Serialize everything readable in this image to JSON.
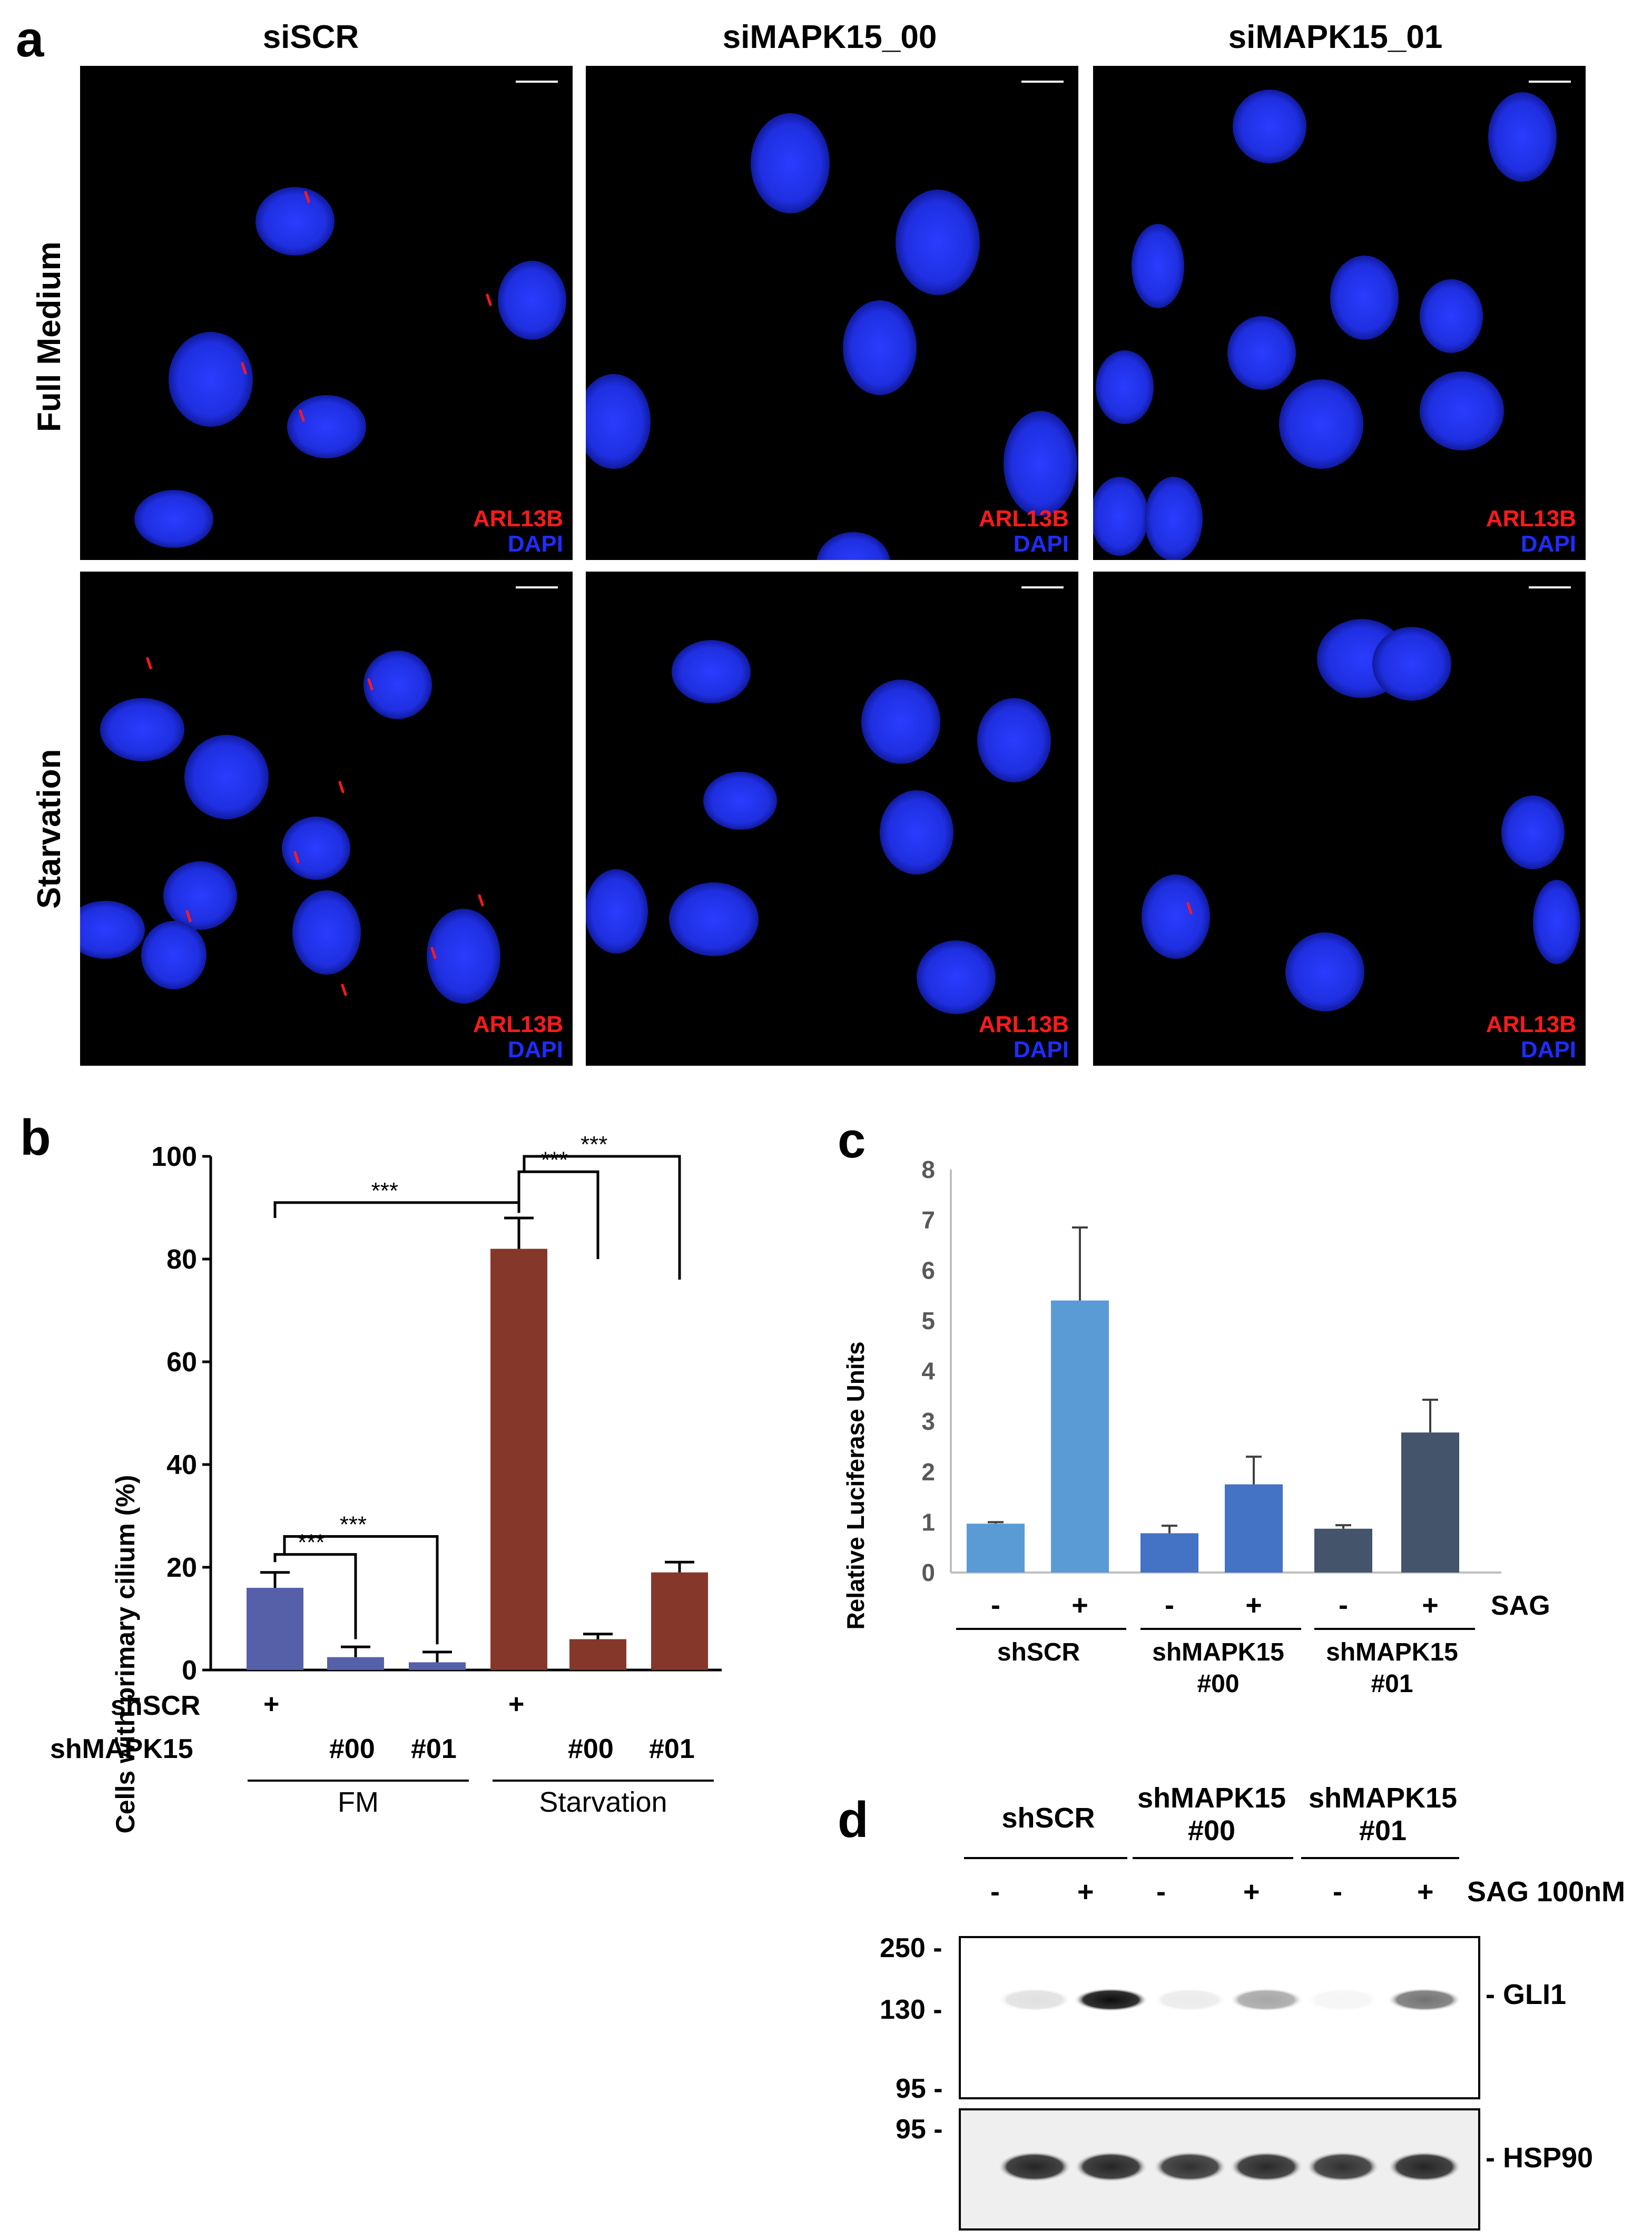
{
  "panel_a": {
    "label": "a",
    "columns": [
      "siSCR",
      "siMAPK15_00",
      "siMAPK15_01"
    ],
    "rows": [
      "Full Medium",
      "Starvation"
    ],
    "legend": {
      "marker": "ARL13B",
      "stain": "DAPI"
    },
    "colors": {
      "arl13b": "#ff1a1a",
      "dapi": "#1e2dff",
      "background": "#000000"
    }
  },
  "panel_b": {
    "label": "b",
    "row_shscr_label": "shSCR",
    "row_shmapk15_label": "shMAPK15",
    "plus": "+",
    "group_labels": [
      "FM",
      "Starvation"
    ],
    "lane_labels": [
      "#00",
      "#01"
    ],
    "significance": "***"
  },
  "panel_c": {
    "label": "c",
    "sag_label": "SAG",
    "signs": [
      "-",
      "+",
      "-",
      "+",
      "-",
      "+"
    ],
    "groups": [
      "shSCR",
      "shMAPK15\n#00",
      "shMAPK15\n#01"
    ]
  },
  "panel_d": {
    "label": "d",
    "groups": [
      "shSCR",
      "shMAPK15\n#00",
      "shMAPK15\n#01"
    ],
    "treatment_label": "SAG 100nM",
    "signs": [
      "-",
      "+",
      "-",
      "+",
      "-",
      "+"
    ],
    "mw_markers_top": [
      "250",
      "130",
      "95"
    ],
    "mw_marker_bottom": "95",
    "band_labels": [
      "- GLI1",
      "- HSP90"
    ],
    "gli1_intensity": [
      0.12,
      0.95,
      0.08,
      0.35,
      0.04,
      0.55
    ],
    "hsp90_intensity": [
      0.9,
      0.9,
      0.85,
      0.88,
      0.85,
      0.9
    ]
  },
  "chart_data": [
    {
      "type": "bar",
      "panel": "b",
      "title": "",
      "xlabel": "",
      "ylabel": "Cells with primary cilium (%)",
      "ylim": [
        0,
        100
      ],
      "yticks": [
        0,
        20,
        40,
        60,
        80,
        100
      ],
      "categories": [
        "FM shSCR",
        "FM #00",
        "FM #01",
        "Starvation shSCR",
        "Starvation #00",
        "Starvation #01"
      ],
      "values": [
        16,
        2.5,
        1.5,
        82,
        6,
        19
      ],
      "errors": [
        3,
        2,
        2,
        6,
        1,
        2
      ],
      "colors": [
        "#5660a8",
        "#5660a8",
        "#5660a8",
        "#85372a",
        "#85372a",
        "#85372a"
      ],
      "significance": [
        {
          "from": 0,
          "to": 3,
          "label": "***"
        },
        {
          "from": 0,
          "to": 1,
          "label": "***"
        },
        {
          "from": 0,
          "to": 2,
          "label": "***"
        },
        {
          "from": 3,
          "to": 4,
          "label": "***"
        },
        {
          "from": 3,
          "to": 5,
          "label": "***"
        }
      ]
    },
    {
      "type": "bar",
      "panel": "c",
      "title": "",
      "xlabel": "",
      "ylabel": "Relative Luciferase Units",
      "ylim": [
        0,
        8
      ],
      "yticks": [
        0,
        1,
        2,
        3,
        4,
        5,
        6,
        7,
        8
      ],
      "categories": [
        "shSCR -",
        "shSCR +",
        "shMAPK15 #00 -",
        "shMAPK15 #00 +",
        "shMAPK15 #01 -",
        "shMAPK15 #01 +"
      ],
      "values": [
        0.97,
        5.4,
        0.78,
        1.75,
        0.87,
        2.78
      ],
      "errors": [
        0.03,
        1.45,
        0.15,
        0.55,
        0.07,
        0.65
      ],
      "colors": [
        "#5b9bd5",
        "#5b9bd5",
        "#4472c4",
        "#4472c4",
        "#44546a",
        "#44546a"
      ]
    }
  ]
}
